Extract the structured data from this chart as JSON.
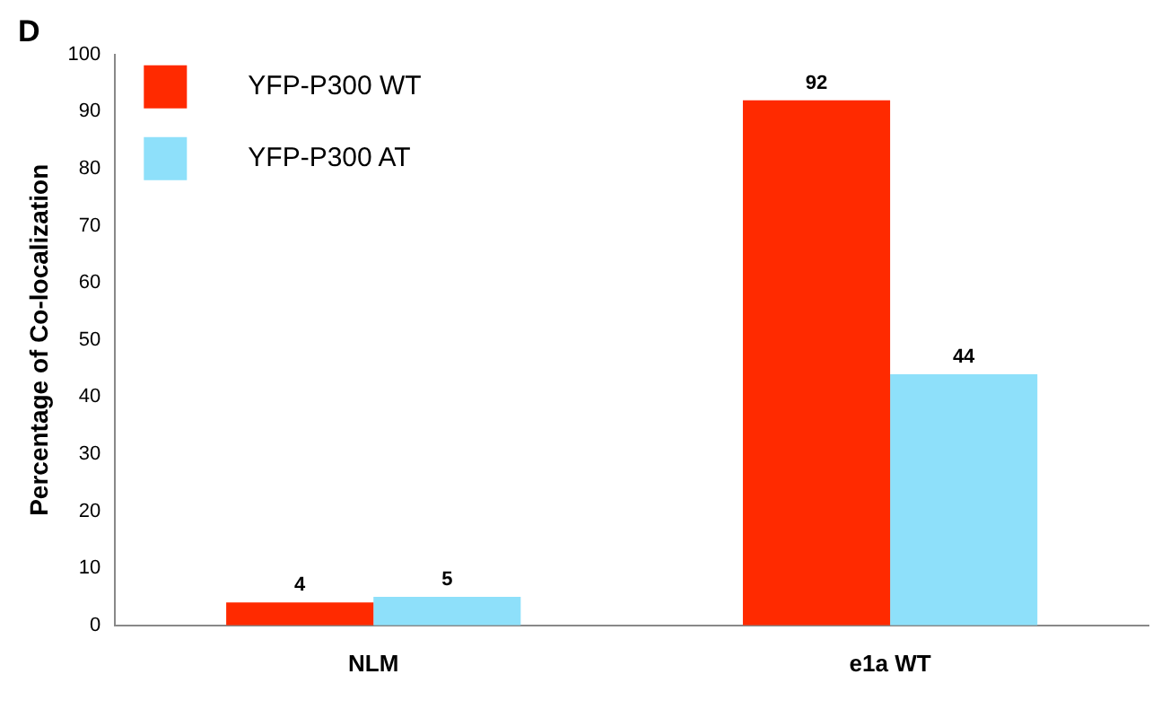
{
  "chart_data": {
    "type": "bar",
    "title": "D",
    "ylabel": "Percentage of Co-localization",
    "categories": [
      "NLM",
      "e1a WT"
    ],
    "series": [
      {
        "name": "YFP-P300 WT",
        "color": "#ff2a00",
        "values": [
          4,
          92
        ]
      },
      {
        "name": "YFP-P300 AT",
        "color": "#8ee0fa",
        "values": [
          5,
          44
        ]
      }
    ],
    "ylim": [
      0,
      100
    ],
    "yticks": [
      0,
      10,
      20,
      30,
      40,
      50,
      60,
      70,
      80,
      90,
      100
    ],
    "grid": false,
    "legend": "top left",
    "data_labels": true
  }
}
